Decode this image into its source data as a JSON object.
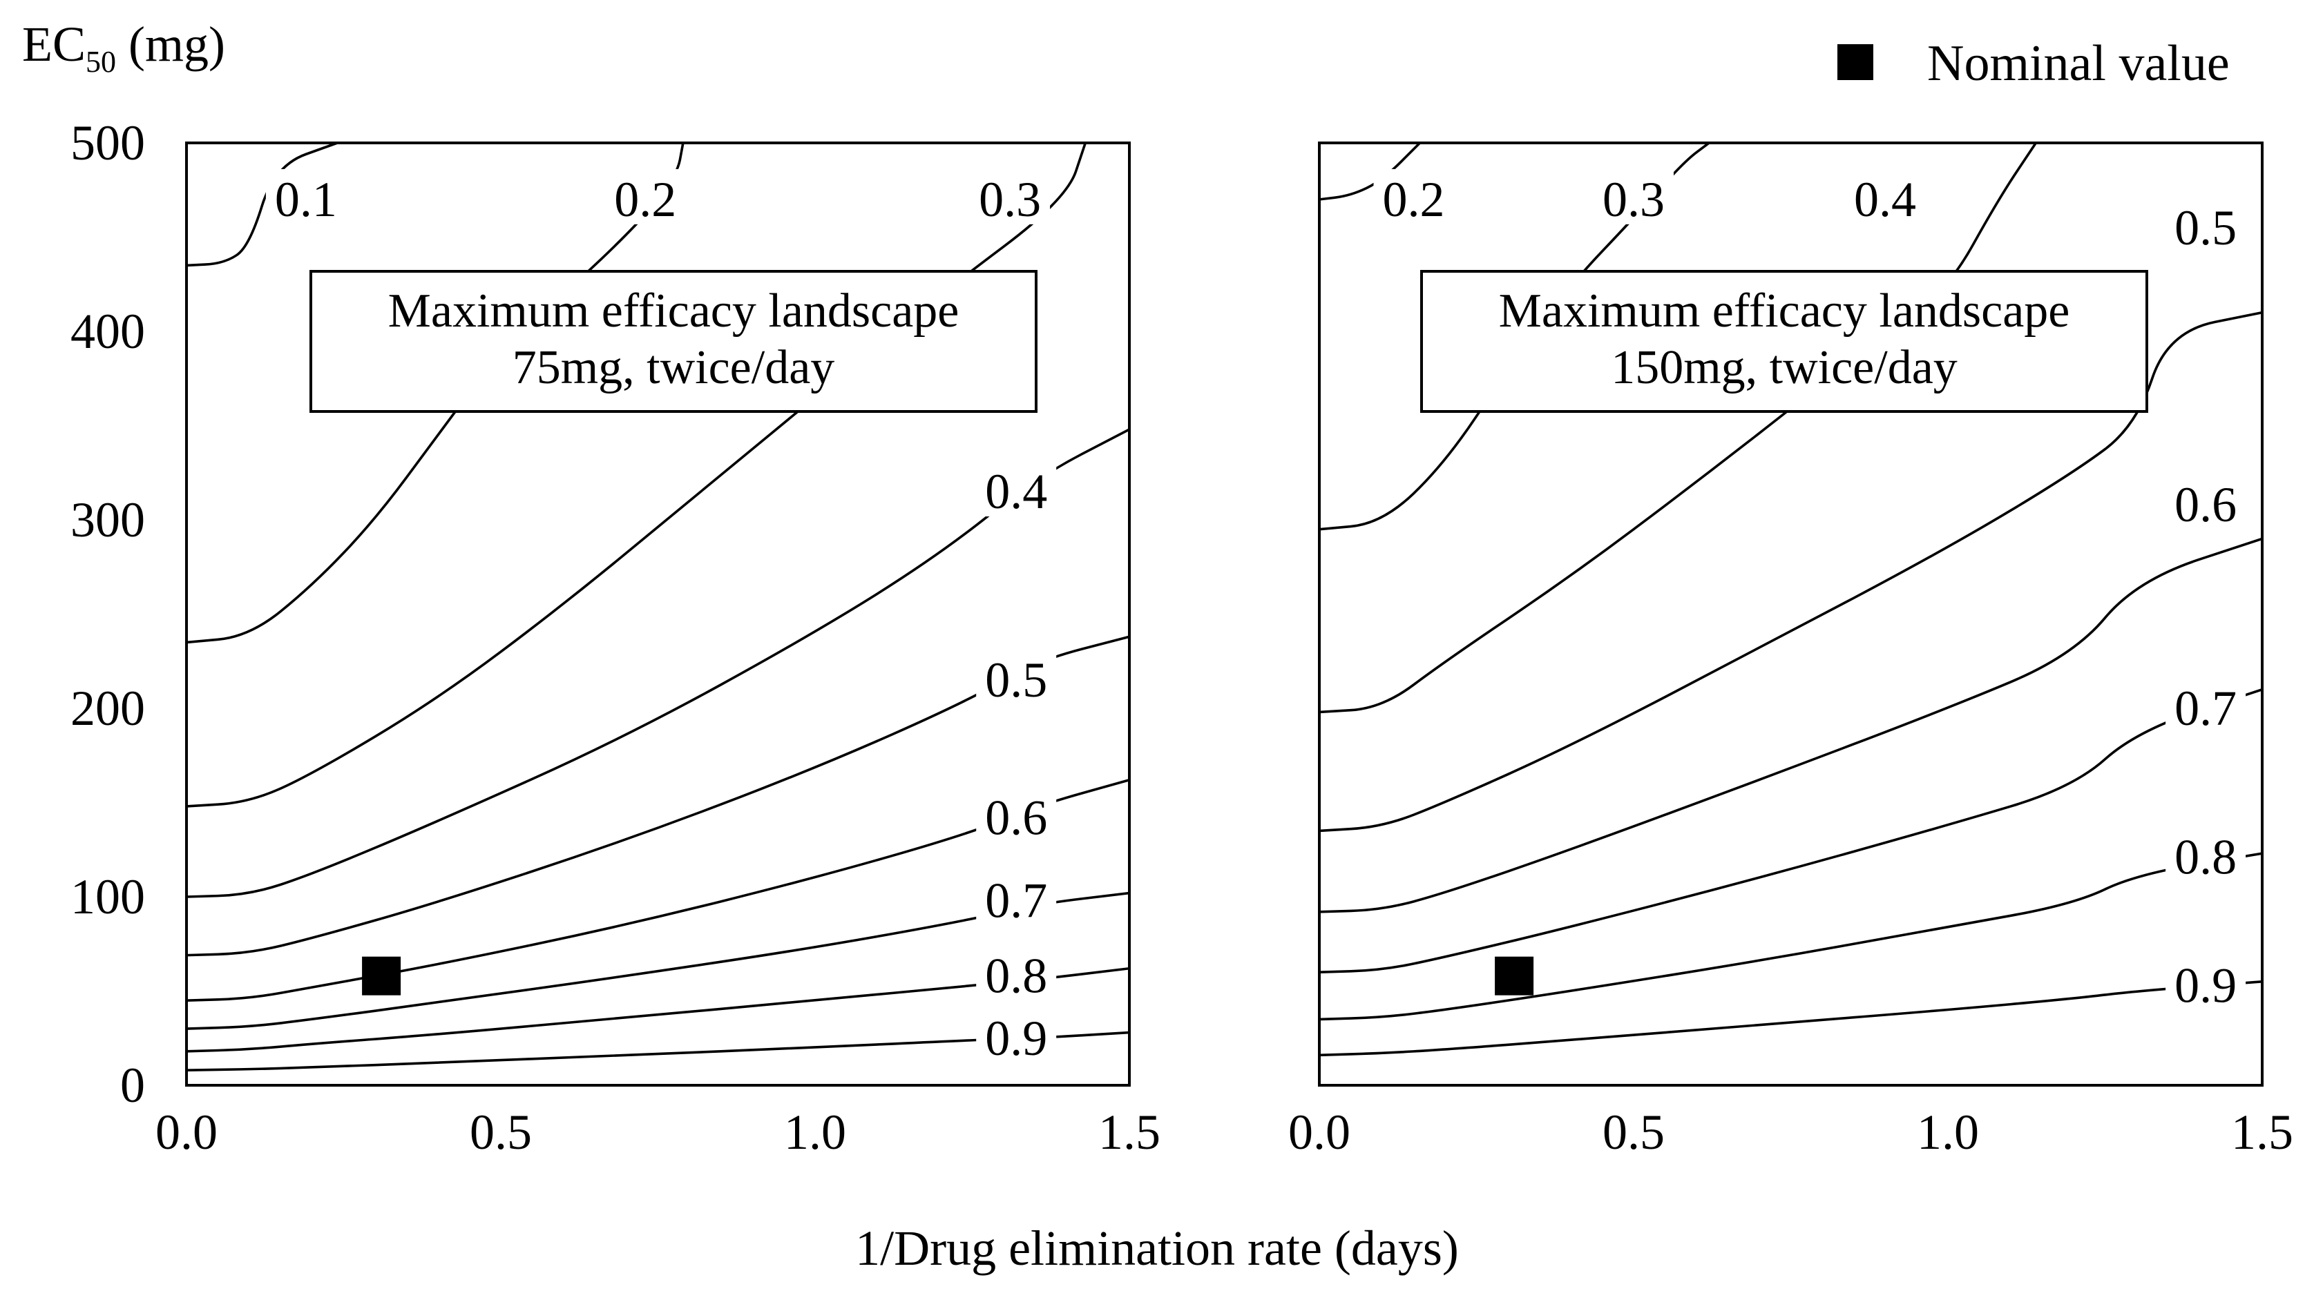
{
  "chart_data": [
    {
      "type": "contour",
      "title": "Maximum efficacy landscape",
      "subtitle": "75mg, twice/day",
      "xlabel": "1/Drug elimination rate (days)",
      "ylabel": "EC50 (mg)",
      "xlim": [
        0,
        1.5
      ],
      "ylim": [
        0,
        500
      ],
      "xticks": [
        "0.0",
        "0.5",
        "1.0",
        "1.5"
      ],
      "yticks": [
        "0",
        "100",
        "200",
        "300",
        "400",
        "500"
      ],
      "nominal_value": {
        "x": 0.31,
        "y": 58
      },
      "contours": [
        {
          "level": "0.1",
          "points": [
            [
              0,
              435
            ],
            [
              0.06,
              436
            ],
            [
              0.1,
              445
            ],
            [
              0.14,
              488
            ],
            [
              0.24,
              500
            ]
          ]
        },
        {
          "level": "0.2",
          "points": [
            [
              0,
              235
            ],
            [
              0.1,
              238
            ],
            [
              0.2,
              265
            ],
            [
              0.3,
              300
            ],
            [
              0.4,
              345
            ],
            [
              0.5,
              390
            ],
            [
              0.7,
              450
            ],
            [
              0.78,
              482
            ],
            [
              0.79,
              500
            ]
          ]
        },
        {
          "level": "0.3",
          "points": [
            [
              0,
              148
            ],
            [
              0.1,
              150
            ],
            [
              0.2,
              165
            ],
            [
              0.4,
              205
            ],
            [
              0.6,
              255
            ],
            [
              0.8,
              310
            ],
            [
              1.0,
              365
            ],
            [
              1.2,
              420
            ],
            [
              1.4,
              470
            ],
            [
              1.43,
              500
            ]
          ]
        },
        {
          "level": "0.4",
          "points": [
            [
              0,
              100
            ],
            [
              0.1,
              101
            ],
            [
              0.2,
              112
            ],
            [
              0.4,
              140
            ],
            [
              0.7,
              185
            ],
            [
              1.0,
              240
            ],
            [
              1.2,
              282
            ],
            [
              1.35,
              322
            ],
            [
              1.5,
              348
            ]
          ]
        },
        {
          "level": "0.5",
          "points": [
            [
              0,
              69
            ],
            [
              0.1,
              70
            ],
            [
              0.2,
              78
            ],
            [
              0.4,
              97
            ],
            [
              0.7,
              130
            ],
            [
              1.0,
              168
            ],
            [
              1.25,
              205
            ],
            [
              1.35,
              225
            ],
            [
              1.5,
              238
            ]
          ]
        },
        {
          "level": "0.6",
          "points": [
            [
              0,
              45
            ],
            [
              0.1,
              46
            ],
            [
              0.2,
              52
            ],
            [
              0.4,
              64
            ],
            [
              0.7,
              85
            ],
            [
              1.0,
              110
            ],
            [
              1.25,
              134
            ],
            [
              1.35,
              148
            ],
            [
              1.5,
              162
            ]
          ]
        },
        {
          "level": "0.7",
          "points": [
            [
              0,
              30
            ],
            [
              0.1,
              31
            ],
            [
              0.2,
              35
            ],
            [
              0.4,
              44
            ],
            [
              0.7,
              58
            ],
            [
              1.0,
              73
            ],
            [
              1.25,
              88
            ],
            [
              1.35,
              96
            ],
            [
              1.5,
              102
            ]
          ]
        },
        {
          "level": "0.8",
          "points": [
            [
              0,
              18
            ],
            [
              0.1,
              19
            ],
            [
              0.2,
              22
            ],
            [
              0.4,
              27
            ],
            [
              0.7,
              36
            ],
            [
              1.0,
              45
            ],
            [
              1.25,
              53
            ],
            [
              1.35,
              56
            ],
            [
              1.5,
              62
            ]
          ]
        },
        {
          "level": "0.9",
          "points": [
            [
              0,
              8
            ],
            [
              0.1,
              8.5
            ],
            [
              0.2,
              9.5
            ],
            [
              0.4,
              12
            ],
            [
              0.7,
              16
            ],
            [
              1.0,
              20
            ],
            [
              1.25,
              24
            ],
            [
              1.35,
              25
            ],
            [
              1.5,
              28
            ]
          ]
        }
      ],
      "label_positions": [
        [
          0.19,
          470
        ],
        [
          0.73,
          470
        ],
        [
          1.31,
          470
        ],
        [
          1.32,
          315
        ],
        [
          1.32,
          215
        ],
        [
          1.32,
          142
        ],
        [
          1.32,
          98
        ],
        [
          1.32,
          58
        ],
        [
          1.32,
          25
        ]
      ]
    },
    {
      "type": "contour",
      "title": "Maximum efficacy landscape",
      "subtitle": "150mg, twice/day",
      "xlabel": "1/Drug elimination rate (days)",
      "ylabel": "EC50 (mg)",
      "xlim": [
        0,
        1.5
      ],
      "ylim": [
        0,
        500
      ],
      "xticks": [
        "0.0",
        "0.5",
        "1.0",
        "1.5"
      ],
      "yticks": [],
      "nominal_value": {
        "x": 0.31,
        "y": 58
      },
      "contours": [
        {
          "level": "0.2",
          "points": [
            [
              0,
              470
            ],
            [
              0.05,
              472
            ],
            [
              0.1,
              480
            ],
            [
              0.16,
              500
            ]
          ]
        },
        {
          "level": "0.3",
          "points": [
            [
              0,
              295
            ],
            [
              0.1,
              298
            ],
            [
              0.2,
              330
            ],
            [
              0.3,
              380
            ],
            [
              0.4,
              425
            ],
            [
              0.5,
              460
            ],
            [
              0.58,
              490
            ],
            [
              0.62,
              500
            ]
          ]
        },
        {
          "level": "0.4",
          "points": [
            [
              0,
              198
            ],
            [
              0.1,
              200
            ],
            [
              0.2,
              225
            ],
            [
              0.4,
              270
            ],
            [
              0.6,
              320
            ],
            [
              0.8,
              372
            ],
            [
              0.9,
              400
            ],
            [
              1.0,
              422
            ],
            [
              1.08,
              470
            ],
            [
              1.14,
              500
            ]
          ]
        },
        {
          "level": "0.5",
          "points": [
            [
              0,
              135
            ],
            [
              0.1,
              137
            ],
            [
              0.2,
              150
            ],
            [
              0.4,
              180
            ],
            [
              0.7,
              232
            ],
            [
              1.0,
              285
            ],
            [
              1.2,
              325
            ],
            [
              1.3,
              350
            ],
            [
              1.35,
              400
            ],
            [
              1.5,
              410
            ]
          ]
        },
        {
          "level": "0.6",
          "points": [
            [
              0,
              92
            ],
            [
              0.1,
              93
            ],
            [
              0.2,
              102
            ],
            [
              0.4,
              125
            ],
            [
              0.7,
              162
            ],
            [
              1.0,
              200
            ],
            [
              1.2,
              228
            ],
            [
              1.3,
              268
            ],
            [
              1.5,
              290
            ]
          ]
        },
        {
          "level": "0.7",
          "points": [
            [
              0,
              60
            ],
            [
              0.1,
              61
            ],
            [
              0.2,
              68
            ],
            [
              0.4,
              84
            ],
            [
              0.7,
              110
            ],
            [
              1.0,
              138
            ],
            [
              1.2,
              158
            ],
            [
              1.3,
              188
            ],
            [
              1.5,
              210
            ]
          ]
        },
        {
          "level": "0.8",
          "points": [
            [
              0,
              35
            ],
            [
              0.1,
              36
            ],
            [
              0.2,
              40
            ],
            [
              0.4,
              50
            ],
            [
              0.7,
              66
            ],
            [
              1.0,
              84
            ],
            [
              1.2,
              96
            ],
            [
              1.3,
              112
            ],
            [
              1.5,
              123
            ]
          ]
        },
        {
          "level": "0.9",
          "points": [
            [
              0,
              16
            ],
            [
              0.1,
              17
            ],
            [
              0.2,
              19
            ],
            [
              0.4,
              24
            ],
            [
              0.7,
              32
            ],
            [
              1.0,
              40
            ],
            [
              1.2,
              46
            ],
            [
              1.3,
              50
            ],
            [
              1.5,
              55
            ]
          ]
        }
      ],
      "label_positions": [
        [
          0.15,
          470
        ],
        [
          0.5,
          470
        ],
        [
          0.9,
          470
        ],
        [
          1.41,
          455
        ],
        [
          1.41,
          308
        ],
        [
          1.41,
          200
        ],
        [
          1.41,
          121
        ],
        [
          1.41,
          53
        ]
      ]
    }
  ],
  "legend": {
    "label": "Nominal value"
  }
}
